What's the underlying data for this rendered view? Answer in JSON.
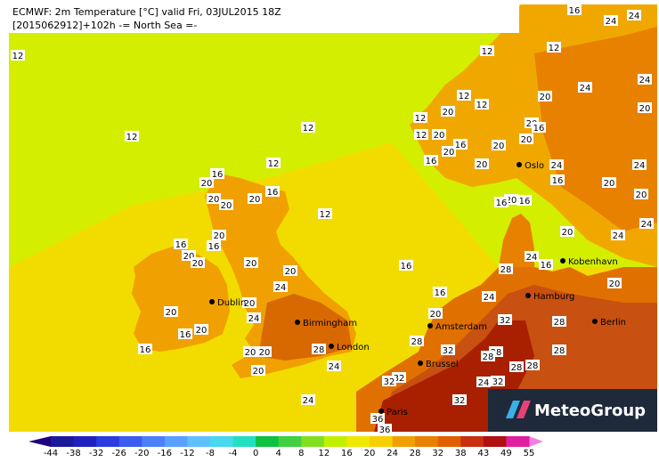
{
  "header": {
    "title": "ECMWF: 2m Temperature [°C] valid Fri, 03JUL2015 18Z",
    "subtitle": "[2015062912]+102h  -= North Sea =-"
  },
  "cities": [
    "Dublin",
    "Birmingham",
    "London",
    "Amsterdam",
    "Brussel",
    "Paris",
    "Hamburg",
    "Berlin",
    "Kobenhavn",
    "Oslo"
  ],
  "contour_labels": [
    12,
    12,
    12,
    12,
    12,
    12,
    12,
    12,
    12,
    12,
    12,
    16,
    20,
    16,
    20,
    20,
    20,
    16,
    16,
    20,
    20,
    20,
    20,
    20,
    24,
    20,
    24,
    20,
    20,
    16,
    16,
    20,
    20,
    28,
    24,
    20,
    16,
    16,
    20,
    24,
    28,
    32,
    28,
    28,
    28,
    32,
    28,
    28,
    28,
    28,
    32,
    32,
    24,
    32,
    32,
    36,
    36,
    24,
    20,
    20,
    16,
    20,
    16,
    20,
    20,
    20,
    20,
    16,
    20,
    24,
    20,
    24,
    24,
    24,
    24,
    20,
    20,
    24,
    16,
    16,
    20,
    16,
    20,
    24,
    24,
    24,
    16,
    20,
    16
  ],
  "colorbar": {
    "ticks": [
      -44,
      -38,
      -32,
      -26,
      -20,
      -16,
      -12,
      -8,
      -4,
      0,
      4,
      8,
      12,
      16,
      20,
      24,
      28,
      32,
      38,
      43,
      49,
      55
    ],
    "colors": [
      "#1a1a9a",
      "#2020c0",
      "#2a3ce0",
      "#3a5cf0",
      "#4a80f8",
      "#5aa0ff",
      "#60c0ff",
      "#48d8f0",
      "#20e0c0",
      "#10c040",
      "#40d040",
      "#80e020",
      "#c0f000",
      "#f0e800",
      "#f8d000",
      "#f0a000",
      "#e88000",
      "#e06000",
      "#c83010",
      "#b01010",
      "#e020a0"
    ],
    "under_color": "#200080",
    "over_color": "#f080e0"
  },
  "logo": {
    "text": "MeteoGroup"
  }
}
